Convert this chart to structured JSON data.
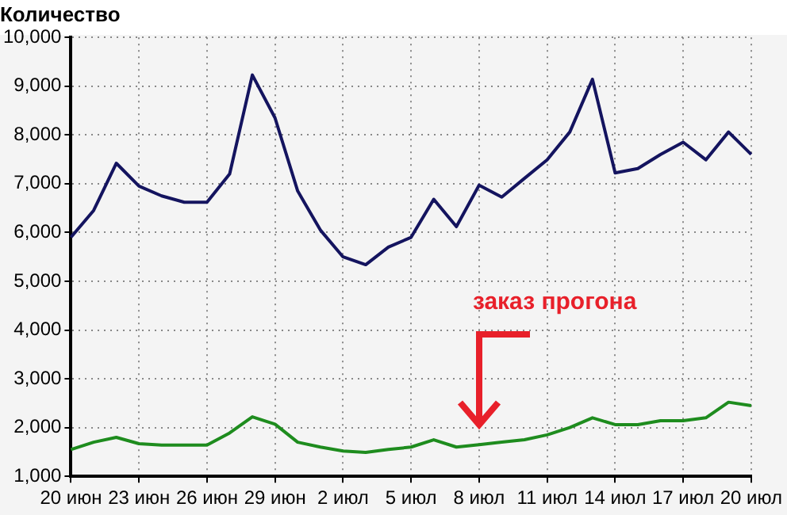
{
  "chart_data": {
    "type": "line",
    "title": "Количество",
    "categories": [
      "20 июн",
      null,
      null,
      "23 июн",
      null,
      null,
      "26 июн",
      null,
      null,
      "29 июн",
      null,
      null,
      "2 июл",
      null,
      null,
      "5 июл",
      null,
      null,
      "8 июл",
      null,
      null,
      "11 июл",
      null,
      null,
      "14 июл",
      null,
      null,
      "17 июл",
      null,
      null,
      "20 июл"
    ],
    "series": [
      {
        "color": "#14145f",
        "values": [
          5900,
          6450,
          7420,
          6950,
          6750,
          6620,
          6620,
          7200,
          9230,
          8350,
          6850,
          6050,
          5500,
          5340,
          5700,
          5900,
          6680,
          6120,
          6970,
          6725,
          7110,
          7490,
          8060,
          9140,
          7220,
          7310,
          7600,
          7850,
          7490,
          8060,
          7600
        ]
      },
      {
        "color": "#1e8c1e",
        "values": [
          1550,
          1700,
          1800,
          1670,
          1640,
          1640,
          1640,
          1890,
          2220,
          2070,
          1700,
          1600,
          1520,
          1490,
          1550,
          1600,
          1750,
          1600,
          1650,
          1700,
          1750,
          1850,
          2000,
          2200,
          2060,
          2060,
          2140,
          2140,
          2200,
          2520,
          2450
        ]
      }
    ],
    "ylim": [
      1000,
      10000
    ],
    "yticks": [
      {
        "value": 1000,
        "label": "1,000"
      },
      {
        "value": 2000,
        "label": "2,000"
      },
      {
        "value": 3000,
        "label": "3,000"
      },
      {
        "value": 4000,
        "label": "4,000"
      },
      {
        "value": 5000,
        "label": "5,000"
      },
      {
        "value": 6000,
        "label": "6,000"
      },
      {
        "value": 7000,
        "label": "7,000"
      },
      {
        "value": 8000,
        "label": "8,000"
      },
      {
        "value": 9000,
        "label": "9,000"
      },
      {
        "value": 10000,
        "label": "10,000"
      }
    ],
    "grid": true,
    "legend": false,
    "marker": "none",
    "line_style": "solid",
    "annotations": [
      "заказ прогона"
    ]
  }
}
